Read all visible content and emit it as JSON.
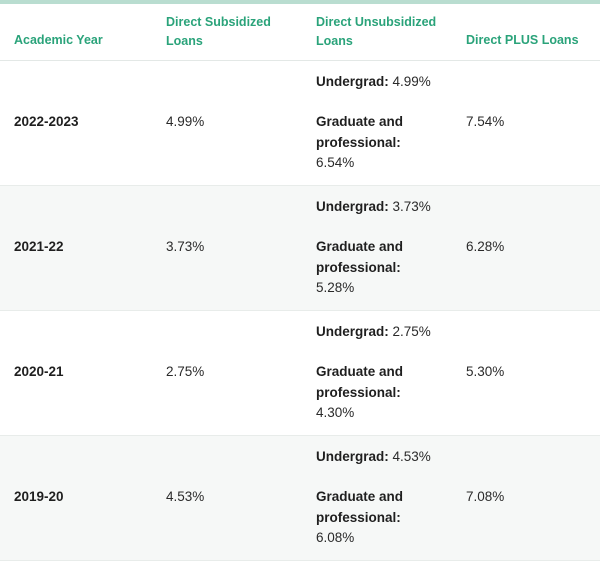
{
  "headers": {
    "year": "Academic Year",
    "subsidized": "Direct Subsidized Loans",
    "unsubsidized": "Direct Unsubsidized Loans",
    "plus": "Direct PLUS Loans"
  },
  "labels": {
    "undergrad": "Undergrad:",
    "graduate": "Graduate and professional:"
  },
  "rows": [
    {
      "year": "2022-2023",
      "subsidized": "4.99%",
      "unsub_undergrad": "4.99%",
      "unsub_graduate": "6.54%",
      "plus": "7.54%"
    },
    {
      "year": "2021-22",
      "subsidized": "3.73%",
      "unsub_undergrad": "3.73%",
      "unsub_graduate": "5.28%",
      "plus": "6.28%"
    },
    {
      "year": "2020-21",
      "subsidized": "2.75%",
      "unsub_undergrad": "2.75%",
      "unsub_graduate": "4.30%",
      "plus": "5.30%"
    },
    {
      "year": "2019-20",
      "subsidized": "4.53%",
      "unsub_undergrad": "4.53%",
      "unsub_graduate": "6.08%",
      "plus": "7.08%"
    }
  ],
  "colors": {
    "header_text": "#2aa37a",
    "top_border": "#b9ddd0",
    "alt_row_bg": "#f6f8f7"
  }
}
